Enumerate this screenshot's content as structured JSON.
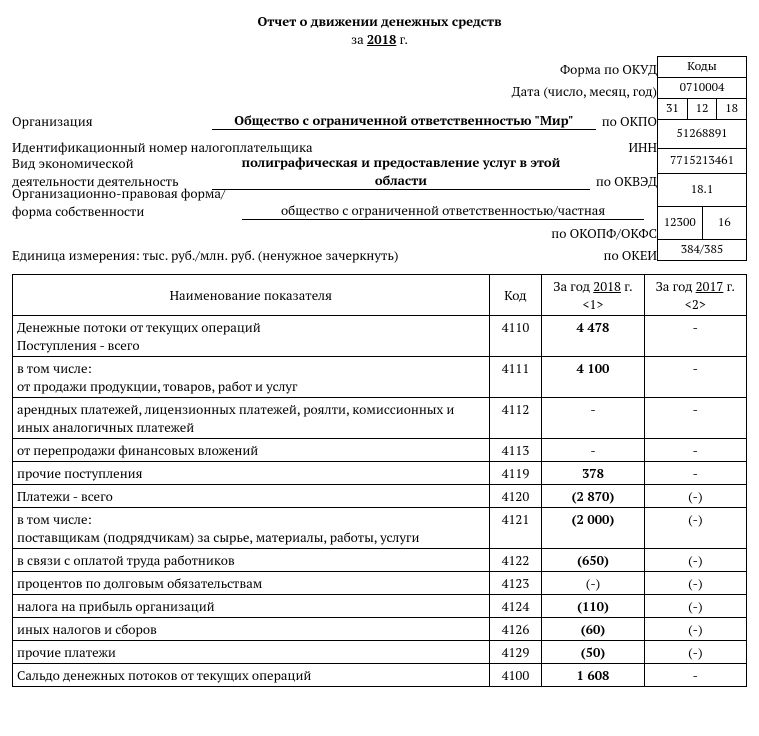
{
  "title": {
    "line1": "Отчет о движении денежных средств",
    "prefix": "за ",
    "year": "2018",
    "suffix": " г."
  },
  "codes_header": "Коды",
  "codes": {
    "okud": "0710004",
    "date_d": "31",
    "date_m": "12",
    "date_y": "18",
    "okpo": "51268891",
    "inn": "7715213461",
    "okved": "18.1",
    "okopf": "12300",
    "okfs": "16",
    "okei": "384/385"
  },
  "labels": {
    "forma": "Форма по ОКУД",
    "date": "Дата (число, месяц, год)",
    "org": "Организация",
    "org_value": "Общество с ограниченной ответственностью \"Мир\"",
    "okpo": "по ОКПО",
    "inn_label": "Идентификационный номер налогоплательщика",
    "inn": "ИНН",
    "activity_label": "Вид экономической деятельности деятельность",
    "activity_value": "полиграфическая и предоставление услуг в этой области",
    "okved": "по ОКВЭД",
    "orgform_label": "Организационно-правовая форма/форма собственности",
    "orgform_value": "общество с ограниченной ответственностью/частная",
    "okopf_okfs": "по ОКОПФ/ОКФС",
    "unit_label": "Единица измерения: тыс. руб./млн. руб. (ненужное зачеркнуть)",
    "okei": "по ОКЕИ"
  },
  "table": {
    "head_name": "Наименование показателя",
    "head_code": "Код",
    "head_y1_prefix": "За год ",
    "head_y1_year": "2018",
    "head_y1_suffix": " г. <1>",
    "head_y2_prefix": "За год ",
    "head_y2_year": "2017",
    "head_y2_suffix": " г. <2>",
    "rows": [
      {
        "name": "Денежные потоки от текущих операций\nПоступления - всего",
        "code": "4110",
        "v1": "4 478",
        "v2": "-",
        "bold": true,
        "twoLine": true
      },
      {
        "name": "в том числе:\nот продажи продукции, товаров, работ и услуг",
        "code": "4111",
        "v1": "4 100",
        "v2": "-",
        "bold": true,
        "twoLine": true
      },
      {
        "name": "арендных платежей, лицензионных платежей, роялти, комиссионных и иных аналогичных платежей",
        "code": "4112",
        "v1": "-",
        "v2": "-"
      },
      {
        "name": "от перепродажи финансовых вложений",
        "code": "4113",
        "v1": "-",
        "v2": "-"
      },
      {
        "name": "прочие поступления",
        "code": "4119",
        "v1": "378",
        "v2": "-",
        "bold": true
      },
      {
        "name": "Платежи - всего",
        "code": "4120",
        "v1": "(2 870)",
        "v2": "(-)",
        "bold": true
      },
      {
        "name": "в том числе:\nпоставщикам (подрядчикам) за сырье, материалы, работы, услуги",
        "code": "4121",
        "v1": "(2 000)",
        "v2": "(-)",
        "bold": true,
        "twoLine": true
      },
      {
        "name": "в связи с оплатой труда работников",
        "code": "4122",
        "v1": "(650)",
        "v2": "(-)",
        "bold": true
      },
      {
        "name": "процентов по долговым обязательствам",
        "code": "4123",
        "v1": "(-)",
        "v2": "(-)"
      },
      {
        "name": "налога на прибыль организаций",
        "code": "4124",
        "v1": "(110)",
        "v2": "(-)",
        "bold": true
      },
      {
        "name": "иных налогов и сборов",
        "code": "4126",
        "v1": "(60)",
        "v2": "(-)",
        "bold": true
      },
      {
        "name": "прочие платежи",
        "code": "4129",
        "v1": "(50)",
        "v2": "(-)",
        "bold": true
      },
      {
        "name": "Сальдо денежных потоков от текущих операций",
        "code": "4100",
        "v1": "1 608",
        "v2": "-",
        "bold": true
      }
    ]
  }
}
